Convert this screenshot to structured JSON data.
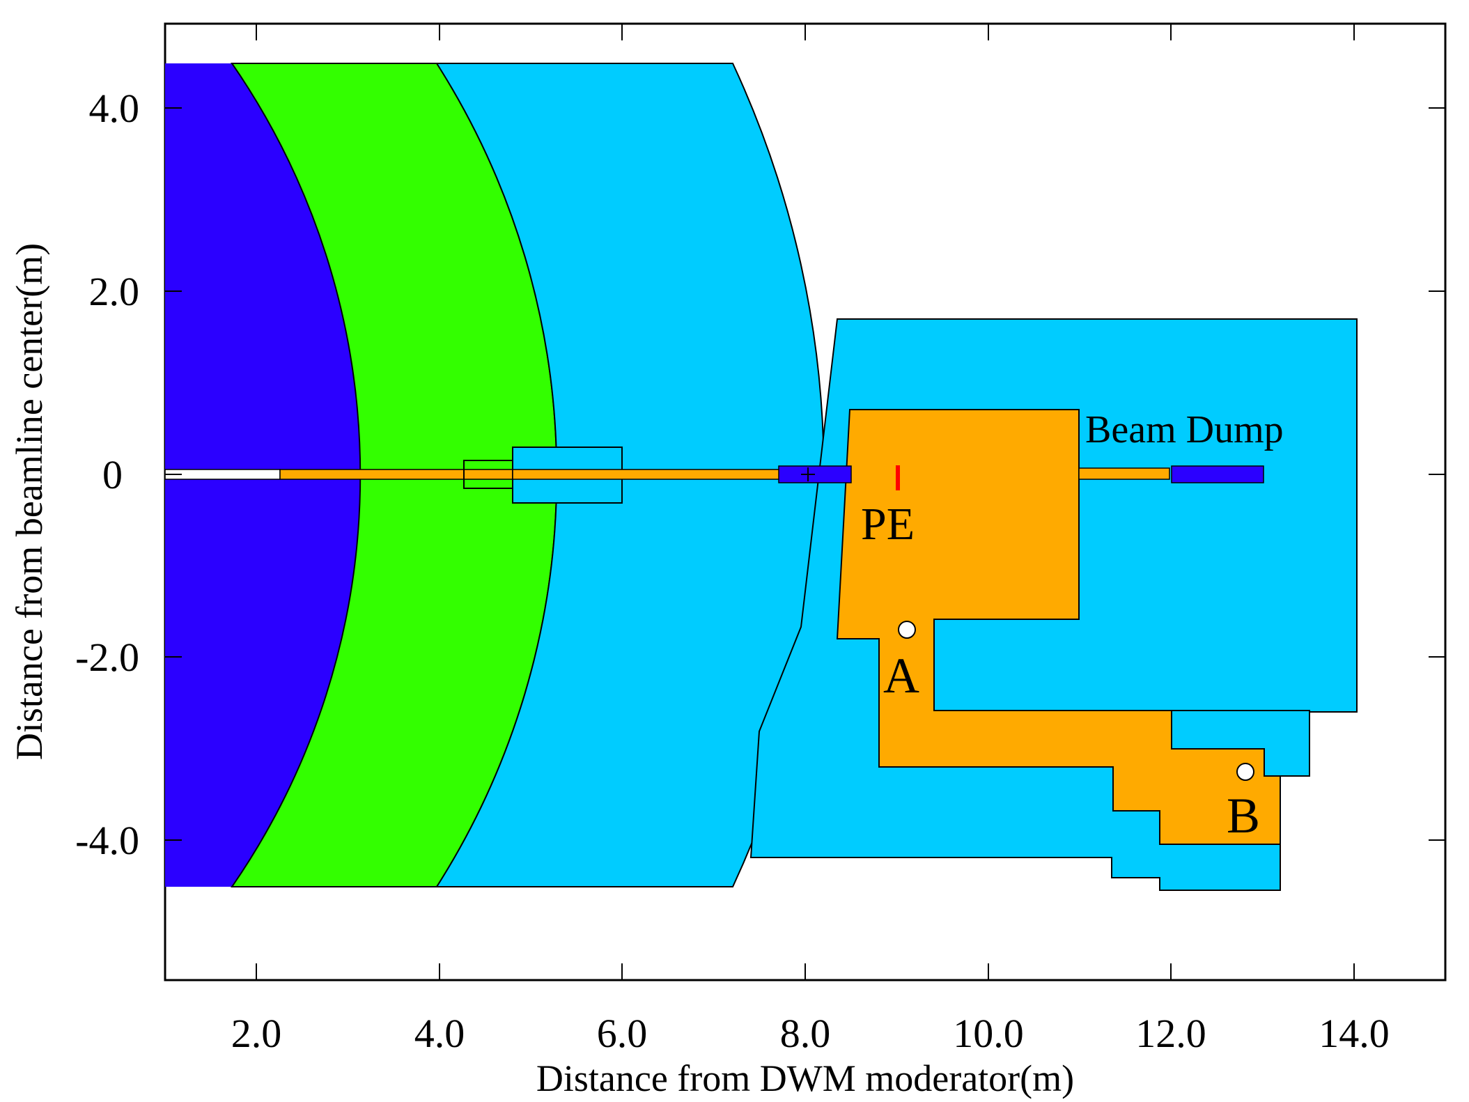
{
  "figure": {
    "xlabel": "Distance from DWM moderator(m)",
    "ylabel": "Distance from beamline center(m)",
    "x_ticks": [
      "2.0",
      "4.0",
      "6.0",
      "8.0",
      "10.0",
      "12.0",
      "14.0"
    ],
    "y_ticks": [
      "4.0",
      "2.0",
      "0",
      "-2.0",
      "-4.0"
    ],
    "x_range_m": [
      1.0,
      15.0
    ],
    "y_range_m": [
      -5.4,
      4.9
    ]
  },
  "labels": {
    "beam_dump": "Beam Dump",
    "pe": "PE",
    "point_a": "A",
    "point_b": "B"
  },
  "colors": {
    "core_iron": "#2b00ff",
    "middle_layer": "#33ff00",
    "outer_shield": "#00ccff",
    "beam_dump_block": "#ffaa00",
    "pe_marker": "#ff0000",
    "outline": "#000000"
  }
}
